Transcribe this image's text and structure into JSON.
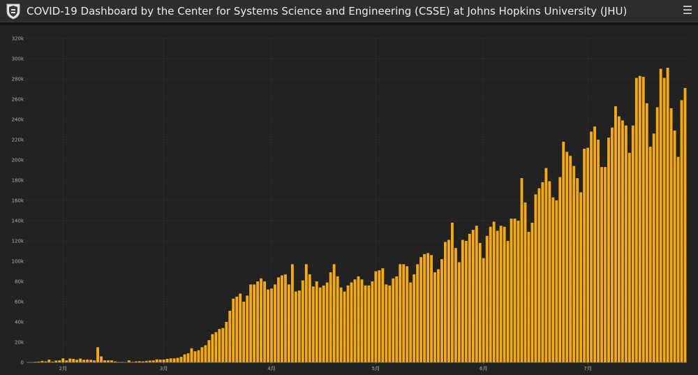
{
  "header": {
    "title": "COVID-19 Dashboard by the Center for Systems Science and Engineering (CSSE) at Johns Hopkins University (JHU)",
    "logo_icon": "university-shield-icon",
    "menu_icon": "hamburger-menu-icon",
    "menu_glyph": "☰"
  },
  "colors": {
    "bar": "#f5a914",
    "background": "#222222",
    "grid": "#3a3a3a",
    "axis_text": "#b0b0b0"
  },
  "chart_data": {
    "type": "bar",
    "title": "",
    "xlabel": "",
    "ylabel": "",
    "ylim": [
      0,
      320000
    ],
    "yticks": [
      0,
      20000,
      40000,
      60000,
      80000,
      100000,
      120000,
      140000,
      160000,
      180000,
      200000,
      220000,
      240000,
      260000,
      280000,
      300000,
      320000
    ],
    "ytick_labels": [
      "0",
      "20k",
      "40k",
      "60k",
      "80k",
      "100k",
      "120k",
      "140k",
      "160k",
      "180k",
      "200k",
      "220k",
      "240k",
      "260k",
      "280k",
      "300k",
      "320k"
    ],
    "x_start_date": "2020-01-22",
    "xtick_labels": [
      {
        "date": "2020-02-01",
        "label": "2月"
      },
      {
        "date": "2020-03-01",
        "label": "3月"
      },
      {
        "date": "2020-04-01",
        "label": "4月"
      },
      {
        "date": "2020-05-01",
        "label": "5月"
      },
      {
        "date": "2020-06-01",
        "label": "6月"
      },
      {
        "date": "2020-07-01",
        "label": "7月"
      }
    ],
    "grid": true,
    "legend": "none",
    "values": [
      100,
      300,
      600,
      800,
      1500,
      1000,
      2700,
      800,
      1800,
      2000,
      4000,
      2000,
      3800,
      3500,
      2600,
      3800,
      2600,
      2800,
      2600,
      2000,
      15000,
      6000,
      2000,
      2000,
      2000,
      1000,
      500,
      500,
      200,
      2000,
      500,
      1000,
      1200,
      1000,
      1500,
      1800,
      2000,
      3000,
      2800,
      2900,
      3500,
      4000,
      4000,
      4500,
      5500,
      8000,
      9000,
      14000,
      11000,
      12000,
      15000,
      17000,
      22000,
      28000,
      30000,
      33000,
      34000,
      40000,
      51000,
      63000,
      65000,
      68000,
      60000,
      66000,
      77000,
      77000,
      80000,
      83000,
      80000,
      72000,
      73000,
      77000,
      84000,
      86000,
      87000,
      77000,
      97000,
      70000,
      71000,
      81000,
      97000,
      87000,
      75000,
      80000,
      74000,
      76000,
      79000,
      89000,
      97000,
      85000,
      74000,
      70000,
      76000,
      79000,
      82000,
      85000,
      82000,
      76000,
      76000,
      80000,
      90000,
      91000,
      93000,
      77000,
      76000,
      83000,
      85000,
      97000,
      97000,
      95000,
      79000,
      87000,
      97000,
      104000,
      107000,
      108000,
      106000,
      89000,
      92000,
      102000,
      119000,
      121000,
      138000,
      113000,
      99000,
      121000,
      120000,
      127000,
      131000,
      135000,
      118000,
      103000,
      125000,
      134000,
      139000,
      130000,
      135000,
      134000,
      120000,
      142000,
      142000,
      140000,
      182000,
      158000,
      129000,
      138000,
      166000,
      172000,
      178000,
      192000,
      179000,
      163000,
      160000,
      183000,
      218000,
      208000,
      204000,
      194000,
      182000,
      168000,
      211000,
      212000,
      228000,
      233000,
      220000,
      193000,
      193000,
      222000,
      232000,
      253000,
      243000,
      239000,
      234000,
      207000,
      234000,
      281000,
      283000,
      282000,
      256000,
      213000,
      226000,
      252000,
      290000,
      281000,
      291000,
      251000,
      229000,
      203000,
      259000,
      271000
    ]
  }
}
